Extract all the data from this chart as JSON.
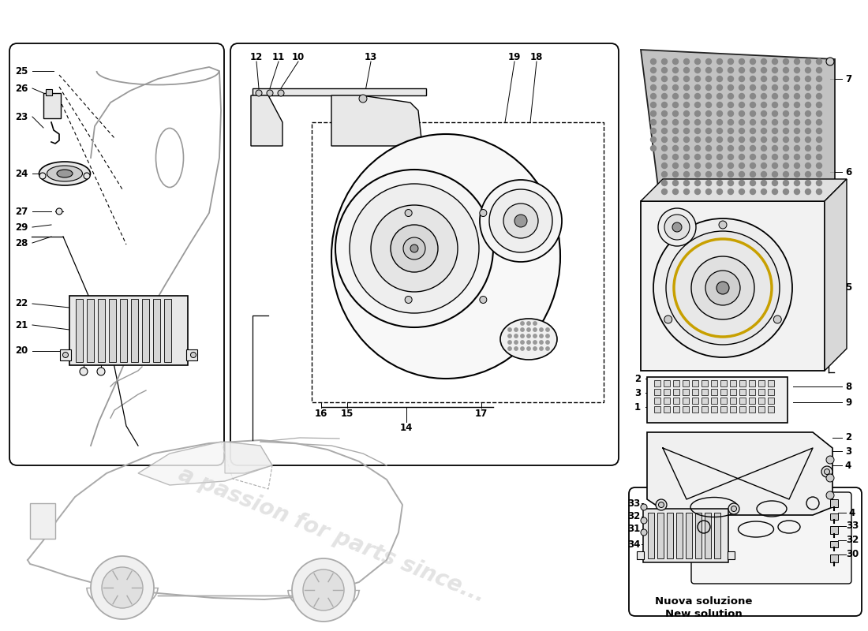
{
  "bg_color": "#ffffff",
  "line_color": "#000000",
  "gray_light": "#e8e8e8",
  "gray_mid": "#cccccc",
  "gray_dark": "#999999",
  "watermark_color": "#cccccc",
  "watermark_text": "a passion for parts since...",
  "new_solution_text1": "Nuova soluzione",
  "new_solution_text2": "New solution"
}
